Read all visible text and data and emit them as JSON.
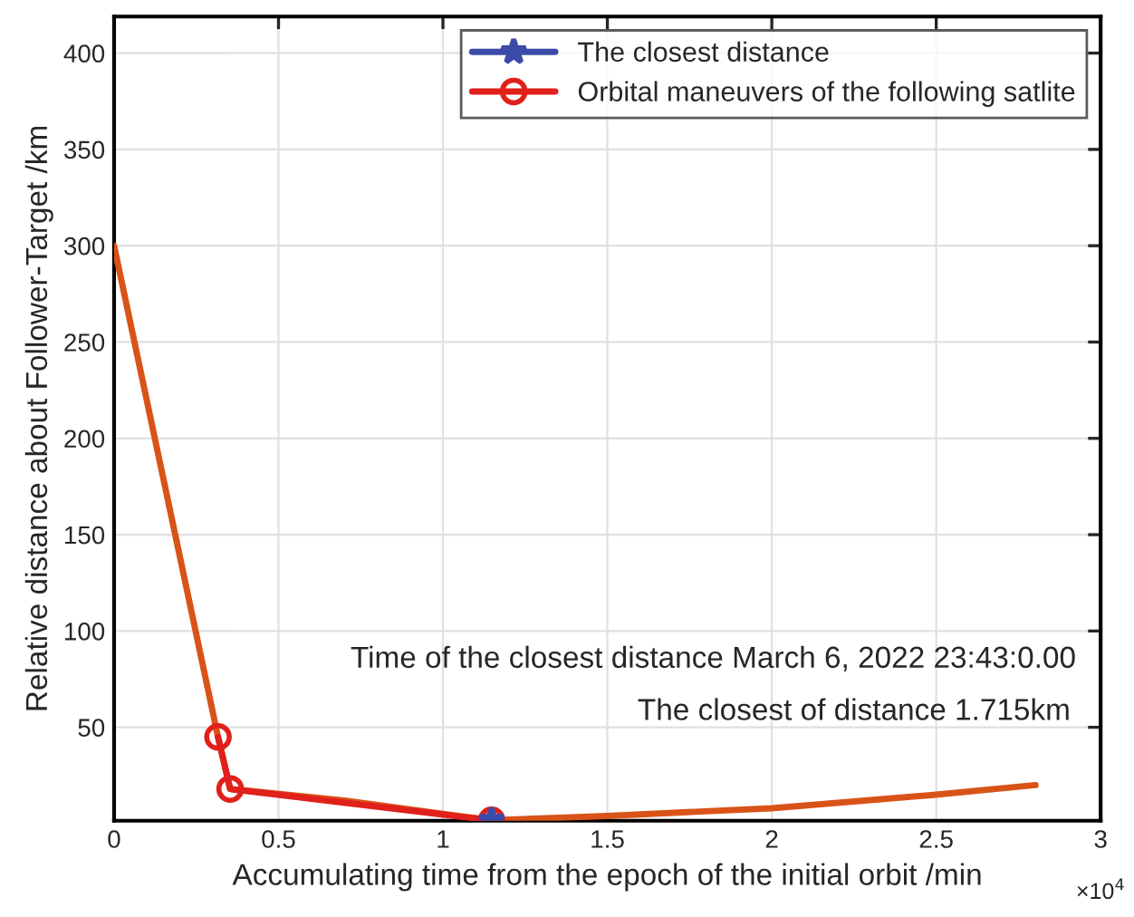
{
  "chart_data": {
    "type": "line",
    "xlabel": "Accumulating time from the epoch of the initial orbit /min",
    "ylabel": "Relative distance about Follower-Target /km",
    "series": [
      {
        "name": "The closest distance",
        "color": "#3b4ba8",
        "marker": "star",
        "x": [
          1.148
        ],
        "values": [
          1.7
        ]
      },
      {
        "name": "Orbital maneuvers of the following satlite",
        "color": "#e0201b",
        "marker": "circle",
        "x": [
          0.316,
          0.353,
          1.148
        ],
        "values": [
          45,
          18,
          1.7
        ]
      },
      {
        "color": "#d95319",
        "marker": "none",
        "x": [
          0,
          0.316,
          0.353,
          0.7,
          1.148,
          1.5,
          2,
          2.5,
          2.802
        ],
        "values": [
          300,
          45,
          18,
          12,
          1.7,
          4,
          8,
          15,
          20
        ]
      }
    ],
    "xlim": [
      0,
      3
    ],
    "xticks": [
      0,
      0.5,
      1,
      1.5,
      2,
      2.5,
      3
    ],
    "ylim": [
      1.5,
      419
    ],
    "yticks": [
      50,
      100,
      150,
      200,
      250,
      300,
      350,
      400
    ],
    "grid": true,
    "legend": "top right",
    "annotations": [
      "Time of the closest distance March 6, 2022 23:43:0.00",
      "The closest of distance 1.715km",
      "×10$^{4}$"
    ]
  }
}
